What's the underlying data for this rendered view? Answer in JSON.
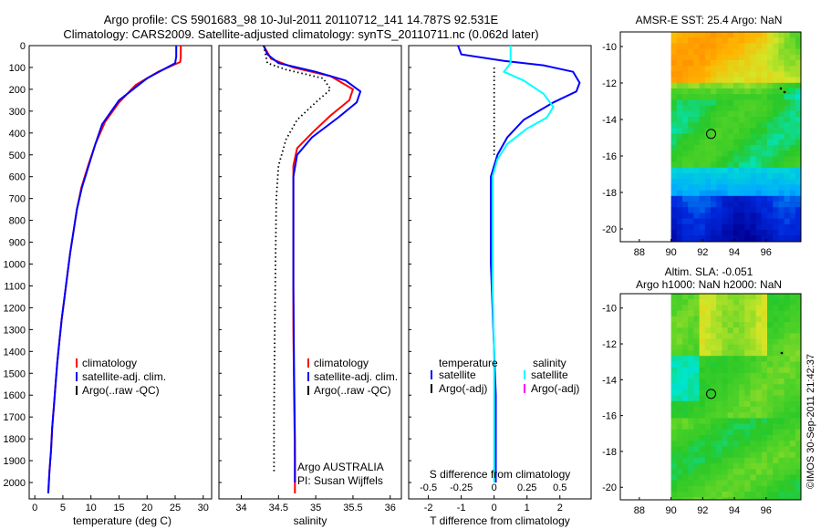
{
  "header": {
    "line1": "Argo profile: CS 5901683_98 10-Jul-2011 20110712_141 14.787S 92.531E",
    "line2": "Climatology: CARS2009. Satellite-adjusted climatology: synTS_20110711.nc (0.062d later)"
  },
  "side_stamp": "©IMOS 30-Sep-2011 21:42:37",
  "colors": {
    "climatology": "#ff0000",
    "satellite": "#0000ff",
    "argo": "#000000",
    "salinity_satellite": "#00ffff",
    "salinity_argo": "#ff00ff"
  },
  "chart_data": [
    {
      "type": "line",
      "xlabel": "temperature (deg C)",
      "ylabel": "",
      "xlim": [
        -1,
        31.5
      ],
      "ylim": [
        2075,
        0
      ],
      "xticks": [
        0,
        5,
        10,
        15,
        20,
        25,
        30
      ],
      "yticks": [
        0,
        100,
        200,
        300,
        400,
        500,
        600,
        700,
        800,
        900,
        1000,
        1100,
        1200,
        1300,
        1400,
        1500,
        1600,
        1700,
        1800,
        1900,
        2000
      ],
      "legend": {
        "placement": "bottom-center",
        "entries": [
          "climatology",
          "satellite-adj. clim.",
          "Argo(..raw -QC)"
        ]
      },
      "series": [
        {
          "name": "climatology",
          "color": "#ff0000",
          "style": "solid",
          "x": [
            26.0,
            26.0,
            25.9,
            22.0,
            18.0,
            15.0,
            12.5,
            10.8,
            9.5,
            8.3,
            7.5,
            6.9,
            6.3,
            5.8,
            5.3,
            4.8,
            4.4,
            4.0,
            3.7,
            3.4,
            3.1,
            2.9,
            2.6,
            2.4
          ],
          "y": [
            0,
            50,
            75,
            120,
            180,
            260,
            350,
            450,
            550,
            650,
            750,
            850,
            950,
            1050,
            1150,
            1250,
            1350,
            1450,
            1550,
            1650,
            1750,
            1850,
            1950,
            2050
          ]
        },
        {
          "name": "satellite-adj. clim.",
          "color": "#0000ff",
          "style": "solid",
          "x": [
            25.2,
            25.2,
            25.0,
            20.0,
            15.0,
            12.0,
            10.8,
            9.6,
            8.4,
            7.5,
            6.9,
            6.3,
            5.8,
            5.3,
            4.8,
            4.4,
            4.0,
            3.7,
            3.4,
            3.1,
            2.9,
            2.6,
            2.4
          ],
          "y": [
            0,
            50,
            80,
            150,
            250,
            360,
            450,
            550,
            650,
            750,
            850,
            950,
            1050,
            1150,
            1250,
            1350,
            1450,
            1550,
            1650,
            1750,
            1850,
            1950,
            2050
          ]
        }
      ]
    },
    {
      "type": "line",
      "xlabel": "salinity",
      "ylabel": "",
      "xlim": [
        33.7,
        36.15
      ],
      "ylim": [
        2075,
        0
      ],
      "xticks": [
        34,
        34.5,
        35,
        35.5,
        36
      ],
      "annotation": [
        "Argo AUSTRALIA",
        "PI: Susan Wijffels"
      ],
      "legend": {
        "placement": "bottom-center",
        "entries": [
          "climatology",
          "satellite-adj. clim.",
          "Argo(..raw -QC)"
        ]
      },
      "series": [
        {
          "name": "climatology",
          "color": "#ff0000",
          "style": "solid",
          "x": [
            34.3,
            34.4,
            34.7,
            35.2,
            35.5,
            35.45,
            35.2,
            34.95,
            34.75,
            34.7,
            34.7,
            34.7,
            34.7,
            34.71,
            34.72,
            34.72
          ],
          "y": [
            0,
            60,
            100,
            140,
            200,
            250,
            320,
            400,
            470,
            550,
            700,
            1000,
            1300,
            1600,
            1900,
            2050
          ]
        },
        {
          "name": "satellite-adj. clim.",
          "color": "#0000ff",
          "style": "solid",
          "x": [
            34.3,
            34.35,
            34.5,
            35.0,
            35.4,
            35.6,
            35.55,
            35.3,
            34.95,
            34.75,
            34.7,
            34.7,
            34.7,
            34.71,
            34.72,
            34.72
          ],
          "y": [
            0,
            40,
            80,
            120,
            160,
            210,
            260,
            330,
            420,
            500,
            600,
            800,
            1100,
            1500,
            1800,
            2000
          ]
        },
        {
          "name": "Argo(..raw -QC)",
          "color": "#000000",
          "style": "dotted",
          "x": [
            34.3,
            34.35,
            34.6,
            35.1,
            35.2,
            35.0,
            34.75,
            34.6,
            34.5,
            34.47,
            34.46,
            34.45,
            34.44,
            34.44
          ],
          "y": [
            0,
            80,
            110,
            150,
            200,
            260,
            340,
            430,
            550,
            700,
            1000,
            1300,
            1700,
            1950
          ]
        }
      ]
    },
    {
      "type": "line",
      "xlabel": "T difference from climatology",
      "ylabel": "",
      "xlim": [
        -2.6,
        2.95
      ],
      "ylim": [
        2075,
        0
      ],
      "xticks": [
        -2,
        -1,
        0,
        1,
        2
      ],
      "secondary_xlabel": "S difference from climatology",
      "secondary_xticks": [
        -0.5,
        -0.25,
        0,
        0.25,
        0.5
      ],
      "legend": {
        "placement": "bottom-center",
        "temperature_title": "temperature",
        "salinity_title": "salinity",
        "temperature_entries": [
          "satellite",
          "Argo(-adj)"
        ],
        "salinity_entries": [
          "satellite",
          "Argo(-adj)"
        ]
      },
      "series": [
        {
          "name": "temperature satellite",
          "color": "#0000ff",
          "style": "solid",
          "x": [
            -1.1,
            -1.0,
            0.3,
            1.5,
            2.4,
            2.6,
            2.5,
            1.8,
            0.9,
            0.4,
            0.1,
            -0.1,
            -0.1,
            -0.1,
            -0.05,
            0.0,
            0.05,
            0.05,
            0.05
          ],
          "y": [
            0,
            40,
            70,
            90,
            120,
            170,
            210,
            260,
            340,
            420,
            500,
            600,
            800,
            1000,
            1200,
            1400,
            1600,
            1800,
            2000
          ]
        },
        {
          "name": "salinity satellite",
          "color": "#00ffff",
          "style": "solid",
          "x": [
            0.5,
            0.5,
            0.3,
            0.9,
            1.5,
            1.8,
            1.6,
            1.0,
            0.4,
            0.1,
            -0.05,
            -0.05,
            -0.05,
            0.0,
            0.0,
            0.0
          ],
          "y": [
            0,
            80,
            120,
            160,
            220,
            280,
            330,
            380,
            450,
            520,
            600,
            800,
            1100,
            1400,
            1700,
            2000
          ]
        },
        {
          "name": "zero reference",
          "color": "#000000",
          "style": "dotted",
          "x": [
            0,
            0
          ],
          "y": [
            100,
            500
          ]
        }
      ]
    },
    {
      "type": "heatmap",
      "title": "AMSR-E SST: 25.4 Argo: NaN",
      "xlim": [
        86.8,
        98.2
      ],
      "ylim": [
        -20.7,
        -9.2
      ],
      "xticks": [
        88,
        90,
        92,
        94,
        96
      ],
      "yticks": [
        -10,
        -12,
        -14,
        -16,
        -18,
        -20
      ],
      "marker": {
        "x": 92.53,
        "y": -14.79
      }
    },
    {
      "type": "heatmap",
      "title": "Altim. SLA: -0.051",
      "subtitle": "Argo h1000: NaN h2000: NaN",
      "xlim": [
        86.8,
        98.2
      ],
      "ylim": [
        -20.7,
        -9.2
      ],
      "xticks": [
        88,
        90,
        92,
        94,
        96
      ],
      "yticks": [
        -10,
        -12,
        -14,
        -16,
        -18,
        -20
      ],
      "marker": {
        "x": 92.53,
        "y": -14.79
      }
    }
  ]
}
